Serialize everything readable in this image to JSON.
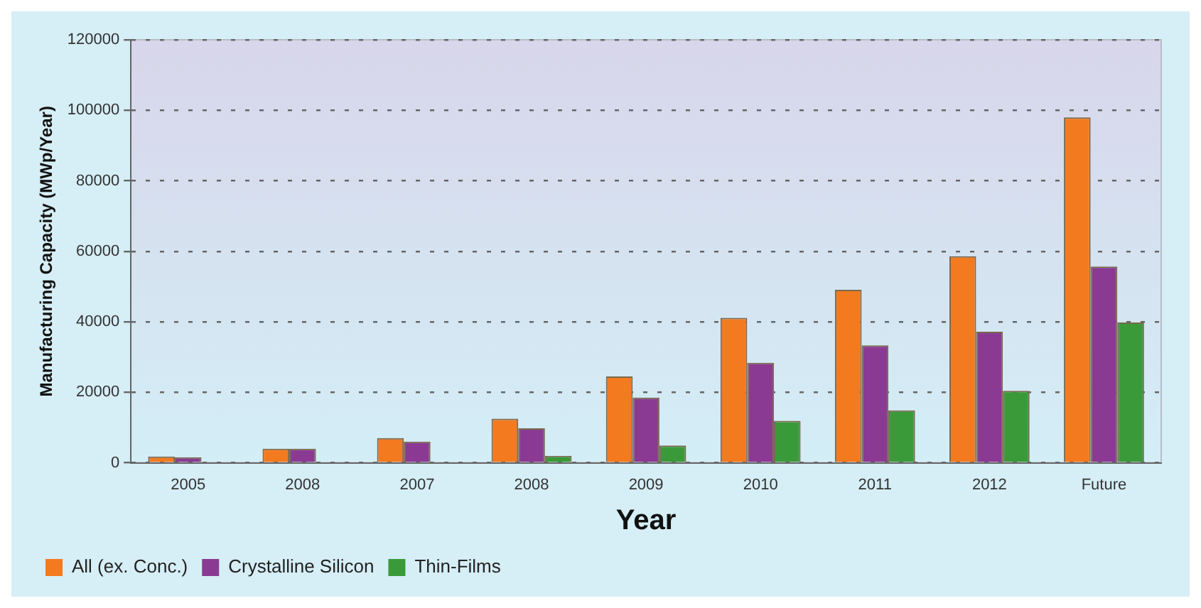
{
  "chart_data": {
    "type": "bar",
    "xlabel": "Year",
    "ylabel": "Manufacturing Capacity (MWp/Year)",
    "categories": [
      "2005",
      "2008",
      "2007",
      "2008",
      "2009",
      "2010",
      "2011",
      "2012",
      "Future"
    ],
    "series": [
      {
        "name": "All (ex. Conc.)",
        "color": "#f47a20",
        "values": [
          1800,
          4000,
          7000,
          12500,
          24500,
          41100,
          49100,
          58600,
          98000
        ]
      },
      {
        "name": "Crystalline Silicon",
        "color": "#8a3a92",
        "values": [
          1600,
          4000,
          6000,
          9800,
          18500,
          28400,
          33300,
          37200,
          55700
        ]
      },
      {
        "name": "Thin-Films",
        "color": "#3a9a3a",
        "values": [
          null,
          null,
          null,
          2000,
          4900,
          11900,
          14900,
          20400,
          39800
        ]
      }
    ],
    "ylim": [
      0,
      120000
    ],
    "yticks": [
      0,
      20000,
      40000,
      60000,
      80000,
      100000,
      120000
    ],
    "grid": "y",
    "legend": "bottom left"
  }
}
